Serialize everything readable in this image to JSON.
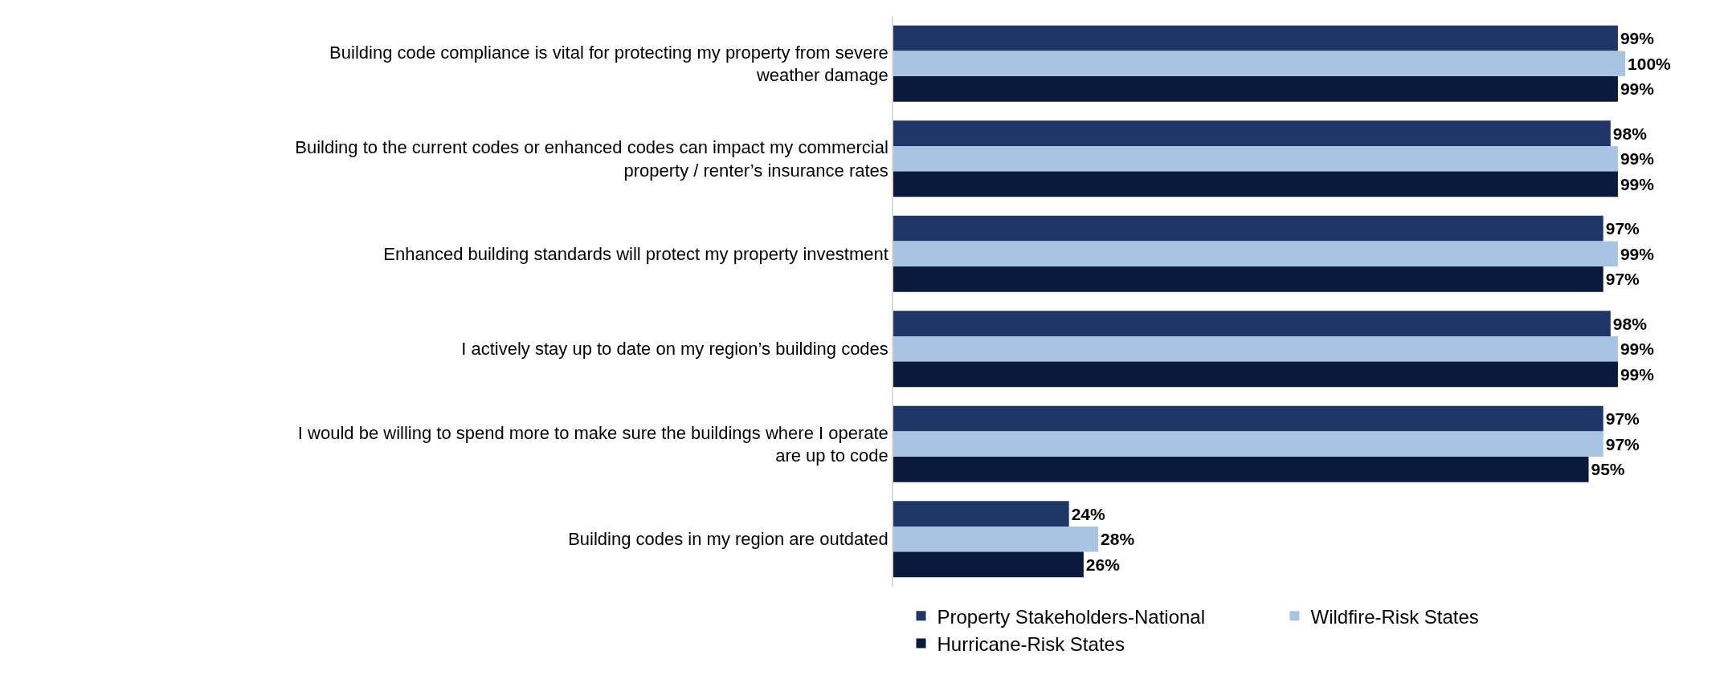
{
  "chart_data": {
    "type": "bar",
    "orientation": "horizontal",
    "legend": "bottom",
    "categories": [
      "Building code compliance is vital for protecting my property from severe weather damage",
      "Building to the current codes or enhanced codes can impact my commercial property / renter’s insurance rates",
      "Enhanced building standards will protect my property investment",
      "I actively stay up to date on my region’s building codes",
      "I would be willing to spend more to make sure the buildings where I operate are up to code",
      "Building codes in my region are outdated"
    ],
    "series": [
      {
        "name": "Property Stakeholders-National",
        "color": "#1f3668",
        "values": [
          99,
          98,
          97,
          98,
          97,
          24
        ],
        "value_labels": [
          "99%",
          "98%",
          "97%",
          "98%",
          "97%",
          "24%"
        ]
      },
      {
        "name": "Wildfire-Risk States",
        "color": "#a7c5e2",
        "values": [
          100,
          99,
          99,
          99,
          97,
          28
        ],
        "value_labels": [
          "100%",
          "99%",
          "99%",
          "99%",
          "97%",
          "28%"
        ]
      },
      {
        "name": "Hurricane-Risk States",
        "color": "#0a1a3c",
        "values": [
          99,
          99,
          97,
          99,
          95,
          26
        ],
        "value_labels": [
          "99%",
          "99%",
          "97%",
          "99%",
          "95%",
          "26%"
        ]
      }
    ]
  }
}
